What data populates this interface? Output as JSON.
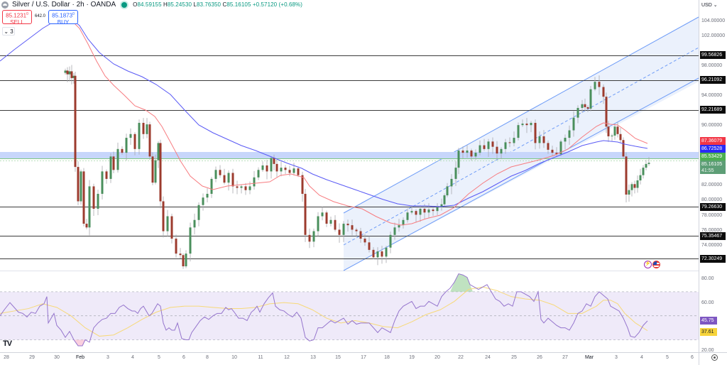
{
  "header": {
    "title": "Silver / U.S. Dollar · 2h · OANDA",
    "ohlc": {
      "open_label": "O",
      "open": "84.59155",
      "high_label": "H",
      "high": "85.24530",
      "low_label": "L",
      "low": "83.76350",
      "close_label": "C",
      "close": "85.16105",
      "change": "+0.57120 (+0.68%)"
    },
    "sell": {
      "price": "85.1231",
      "sup": "0",
      "label": "SELL"
    },
    "buy": {
      "price": "85.1873",
      "sup": "0",
      "label": "BUY"
    },
    "spread": "642.0",
    "indicators_toggle": "⌄ 3"
  },
  "price_axis": {
    "currency": "USD ⌄",
    "ticks": [
      "104.00000",
      "102.00000",
      "98.00000",
      "94.00000",
      "90.00000",
      "82.00000",
      "80.00000",
      "78.00000",
      "76.00000",
      "74.00000"
    ],
    "tick_values": [
      104,
      102,
      98,
      94,
      90,
      82,
      80,
      78,
      76,
      74
    ]
  },
  "horizontal_levels": [
    {
      "price": 99.56826,
      "label": "99.56826"
    },
    {
      "price": 96.21092,
      "label": "96.21092"
    },
    {
      "price": 92.21689,
      "label": "92.21689"
    },
    {
      "price": 79.2663,
      "label": "79.26630"
    },
    {
      "price": 75.35467,
      "label": "75.35467"
    },
    {
      "price": 72.30249,
      "label": "72.30249"
    }
  ],
  "price_tags": [
    {
      "label": "87.36079",
      "color": "#f23645",
      "name": "ema-fast-price-tag"
    },
    {
      "label": "86.72528",
      "color": "#2a2af5",
      "name": "ema-slow-price-tag"
    },
    {
      "label": "85.53429",
      "color": "#4caf50",
      "name": "zone-price-tag"
    },
    {
      "label": "85.16105",
      "sub": "41:55",
      "color": "#5d9e76",
      "name": "last-price-tag"
    }
  ],
  "rsi_axis": {
    "ticks": [
      "80.00",
      "60.00",
      "20.00"
    ],
    "rsi_value": "45.75",
    "rsi_color": "#7e57c2",
    "ma_value": "37.61",
    "ma_color": "#f7d43a"
  },
  "time_axis": {
    "labels": [
      "28",
      "29",
      "30",
      "Feb",
      "3",
      "4",
      "5",
      "6",
      "8",
      "10",
      "11",
      "12",
      "13",
      "15",
      "17",
      "18",
      "19",
      "20",
      "22",
      "24",
      "25",
      "26",
      "27",
      "Mar",
      "3",
      "4",
      "5",
      "6"
    ],
    "x": [
      9,
      45,
      80,
      113,
      152,
      187,
      224,
      259,
      292,
      330,
      367,
      404,
      441,
      476,
      512,
      545,
      580,
      616,
      649,
      687,
      724,
      760,
      796,
      830,
      868,
      904,
      940,
      975
    ]
  },
  "branding": {
    "logo": "TV"
  },
  "colors": {
    "up": "#26a69a",
    "up_body": "#4a8f5c",
    "down": "#9c3b2e",
    "ema_fast": "#f77c80",
    "ema_slow": "#5a5af5",
    "channel": "#6e9cf7",
    "channel_fill": "#e8eefc",
    "zone": "#c7d6fb",
    "rsi_line": "#9575cd",
    "rsi_ma": "#f7d979",
    "rsi_band": "#efeaf9"
  },
  "chart_data": [
    {
      "type": "candlestick",
      "title": "Silver / U.S. Dollar · 2h · OANDA",
      "xlabel": "",
      "ylabel": "USD",
      "ylim": [
        71,
        105
      ],
      "x_ticks": [
        "28",
        "29",
        "30",
        "Feb",
        "3",
        "4",
        "5",
        "6",
        "8",
        "10",
        "11",
        "12",
        "13",
        "15",
        "17",
        "18",
        "19",
        "20",
        "22",
        "24",
        "25",
        "26",
        "27",
        "Mar",
        "3",
        "4",
        "5",
        "6"
      ],
      "last": {
        "open": 84.59155,
        "high": 85.2453,
        "low": 83.7635,
        "close": 85.16105,
        "change": 0.5712,
        "change_pct": 0.68
      },
      "approx_path_close": [
        {
          "x": "30",
          "value": 97.5
        },
        {
          "x": "Feb",
          "value": 84.7
        },
        {
          "x": "Feb-late",
          "value": 76.5
        },
        {
          "x": "3",
          "value": 82.5
        },
        {
          "x": "4",
          "value": 90.2
        },
        {
          "x": "5",
          "value": 80.1
        },
        {
          "x": "6",
          "value": 71.3
        },
        {
          "x": "8",
          "value": 80.5
        },
        {
          "x": "10",
          "value": 82.0
        },
        {
          "x": "11",
          "value": 85.6
        },
        {
          "x": "12",
          "value": 83.8
        },
        {
          "x": "13",
          "value": 75.2
        },
        {
          "x": "15",
          "value": 77.0
        },
        {
          "x": "17",
          "value": 75.2
        },
        {
          "x": "18",
          "value": 73.0
        },
        {
          "x": "19",
          "value": 78.7
        },
        {
          "x": "20",
          "value": 78.8
        },
        {
          "x": "22",
          "value": 86.5
        },
        {
          "x": "24",
          "value": 86.8
        },
        {
          "x": "25",
          "value": 90.6
        },
        {
          "x": "26",
          "value": 87.3
        },
        {
          "x": "27",
          "value": 92.5
        },
        {
          "x": "27-late",
          "value": 95.8
        },
        {
          "x": "Mar",
          "value": 88.7
        },
        {
          "x": "3",
          "value": 80.9
        },
        {
          "x": "4",
          "value": 85.16
        }
      ],
      "series": [
        {
          "name": "EMA fast (red)",
          "last": 87.36079
        },
        {
          "name": "EMA slow (blue)",
          "last": 86.72528
        }
      ],
      "horizontal_levels": [
        99.56826,
        96.21092,
        92.21689,
        79.2663,
        75.35467,
        72.30249
      ],
      "zone": {
        "from": 85.53429,
        "to": 86.4
      },
      "channel": {
        "type": "parallel ascending channel",
        "start": "Feb 15",
        "end": "Mar 6"
      }
    },
    {
      "type": "line",
      "title": "RSI",
      "ylim": [
        20,
        90
      ],
      "bands": [
        70,
        50,
        30
      ],
      "x_ticks": [
        "28",
        "29",
        "30",
        "Feb",
        "3",
        "4",
        "5",
        "6",
        "8",
        "10",
        "11",
        "12",
        "13",
        "15",
        "17",
        "18",
        "19",
        "20",
        "22",
        "24",
        "25",
        "26",
        "27",
        "Mar",
        "3",
        "4",
        "5",
        "6"
      ],
      "series": [
        {
          "name": "RSI",
          "last": 45.75
        },
        {
          "name": "RSI MA",
          "last": 37.61
        }
      ],
      "axis_ticks": [
        80,
        60,
        20
      ]
    }
  ]
}
